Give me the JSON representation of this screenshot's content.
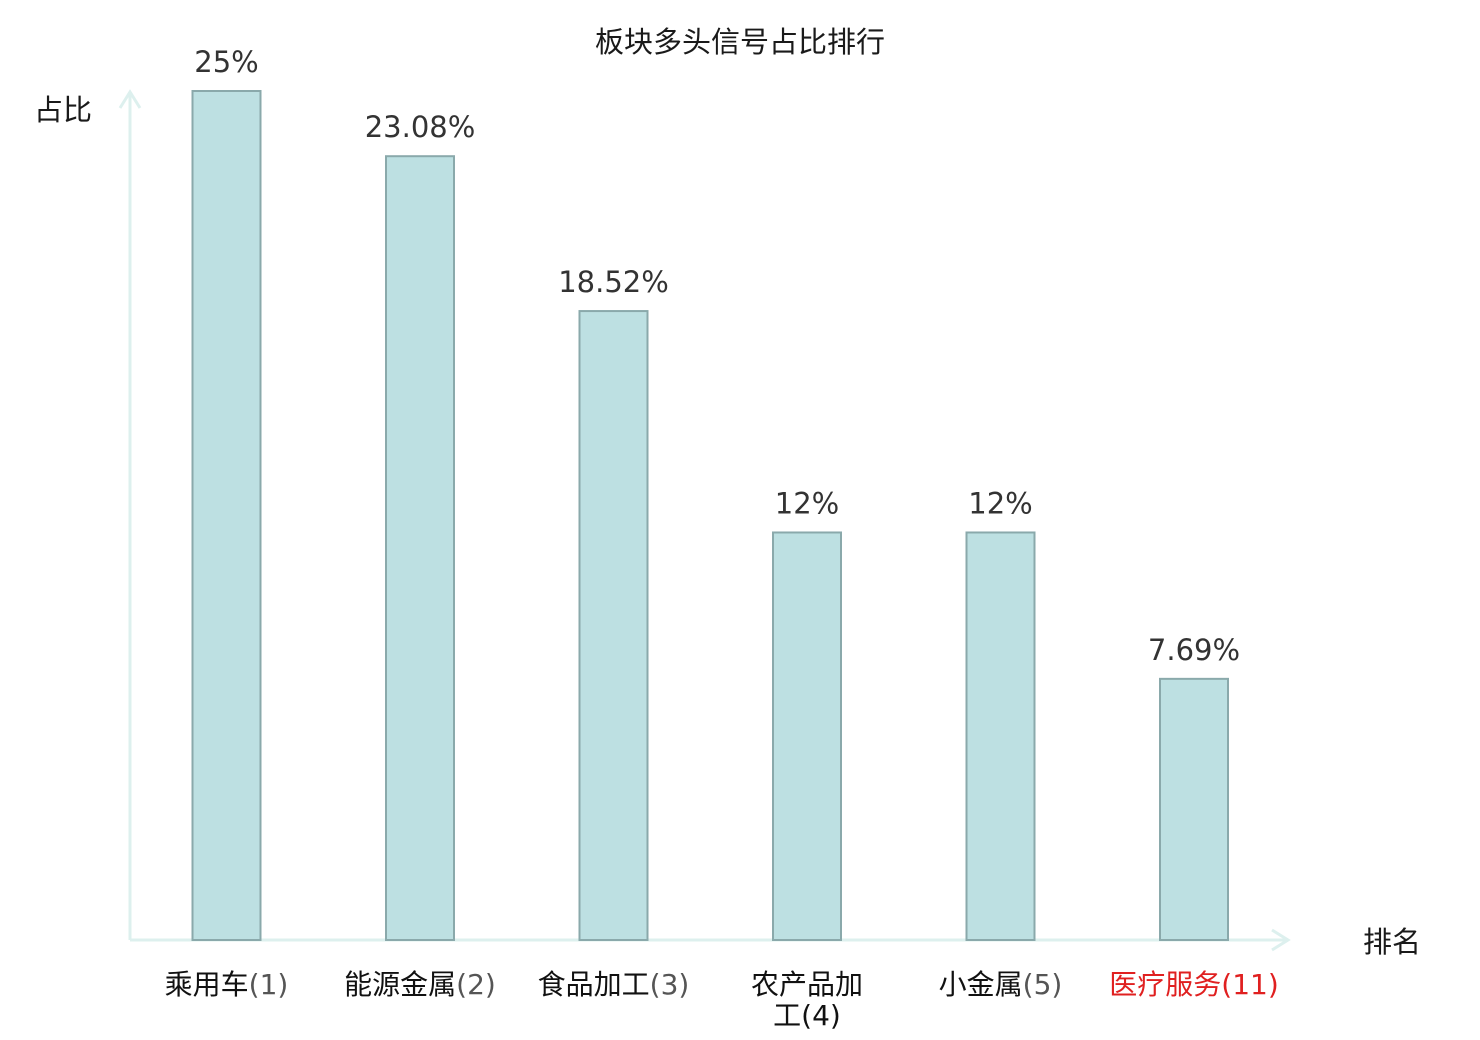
{
  "chart_data": {
    "type": "bar",
    "title": "板块多头信号占比排行",
    "ylabel": "占比",
    "xlabel": "排名",
    "ylim": [
      0,
      25
    ],
    "grid": false,
    "categories": [
      {
        "name": "乘用车",
        "rank": "(1)"
      },
      {
        "name": "能源金属",
        "rank": "(2)"
      },
      {
        "name": "食品加工",
        "rank": "(3)"
      },
      {
        "name": "农产品加工",
        "line1": "农产品加",
        "line2": "工(4)",
        "rank": "(4)"
      },
      {
        "name": "小金属",
        "rank": "(5)"
      },
      {
        "name": "医疗服务",
        "rank": "(11)",
        "highlight": true
      }
    ],
    "values": [
      25,
      23.08,
      18.52,
      12,
      12,
      7.69
    ],
    "value_labels": [
      "25%",
      "23.08%",
      "18.52%",
      "12%",
      "12%",
      "7.69%"
    ],
    "colors": {
      "bar_fill": "#bde0e2",
      "bar_stroke": "#8aa9ab",
      "axis": "#ddf0ee",
      "highlight_text": "#e02020",
      "normal_text": "#111111",
      "rank_text": "#555555"
    }
  }
}
